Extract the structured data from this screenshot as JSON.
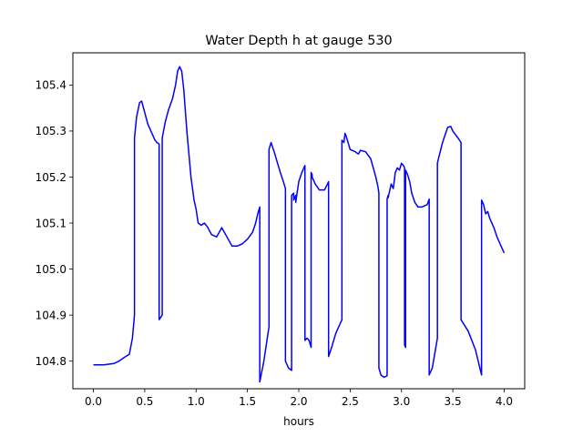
{
  "chart_data": {
    "type": "line",
    "title": "Water Depth h at gauge 530",
    "xlabel": "hours",
    "ylabel": "",
    "xlim": [
      -0.2,
      4.2
    ],
    "ylim": [
      104.74,
      105.47
    ],
    "xticks": [
      0.0,
      0.5,
      1.0,
      1.5,
      2.0,
      2.5,
      3.0,
      3.5,
      4.0
    ],
    "xtick_labels": [
      "0.0",
      "0.5",
      "1.0",
      "1.5",
      "2.0",
      "2.5",
      "3.0",
      "3.5",
      "4.0"
    ],
    "yticks": [
      104.8,
      104.9,
      105.0,
      105.1,
      105.2,
      105.3,
      105.4
    ],
    "ytick_labels": [
      "104.8",
      "104.9",
      "105.0",
      "105.1",
      "105.2",
      "105.3",
      "105.4"
    ],
    "grid": false,
    "line_color": "#0000ff",
    "series": [
      {
        "x": [
          0.0,
          0.1,
          0.2,
          0.25,
          0.3,
          0.35,
          0.38,
          0.4,
          0.4,
          0.42,
          0.45,
          0.47,
          0.5,
          0.53,
          0.56,
          0.6,
          0.62,
          0.64,
          0.64,
          0.67,
          0.67,
          0.7,
          0.73,
          0.77,
          0.8,
          0.82,
          0.84,
          0.86,
          0.88,
          0.91,
          0.95,
          0.98,
          1.0,
          1.02,
          1.05,
          1.08,
          1.11,
          1.15,
          1.2,
          1.25,
          1.3,
          1.35,
          1.4,
          1.45,
          1.5,
          1.55,
          1.58,
          1.6,
          1.62,
          1.62,
          1.66,
          1.7,
          1.71,
          1.71,
          1.73,
          1.76,
          1.78,
          1.82,
          1.85,
          1.87,
          1.87,
          1.9,
          1.93,
          1.93,
          1.95,
          1.95,
          1.97,
          1.97,
          2.0,
          2.03,
          2.06,
          2.06,
          2.08,
          2.1,
          2.12,
          2.12,
          2.13,
          2.13,
          2.16,
          2.2,
          2.25,
          2.28,
          2.29,
          2.29,
          2.32,
          2.36,
          2.4,
          2.42,
          2.42,
          2.44,
          2.45,
          2.46,
          2.5,
          2.55,
          2.58,
          2.6,
          2.65,
          2.7,
          2.75,
          2.76,
          2.77,
          2.78,
          2.78,
          2.8,
          2.83,
          2.86,
          2.86,
          2.87,
          2.87,
          2.9,
          2.92,
          2.94,
          2.96,
          2.98,
          3.0,
          3.02,
          3.03,
          3.03,
          3.04,
          3.04,
          3.06,
          3.08,
          3.1,
          3.13,
          3.16,
          3.2,
          3.25,
          3.27,
          3.27,
          3.3,
          3.35,
          3.35,
          3.36,
          3.4,
          3.43,
          3.45,
          3.48,
          3.5,
          3.55,
          3.58,
          3.58,
          3.65,
          3.72,
          3.78,
          3.78,
          3.8,
          3.82,
          3.84,
          3.86,
          3.9,
          3.93,
          3.95,
          3.97,
          4.0
        ],
        "y": [
          104.792,
          104.792,
          104.795,
          104.8,
          104.808,
          104.815,
          104.85,
          104.9,
          105.285,
          105.33,
          105.362,
          105.365,
          105.34,
          105.315,
          105.3,
          105.28,
          105.275,
          105.272,
          104.89,
          104.9,
          105.285,
          105.32,
          105.345,
          105.37,
          105.4,
          105.43,
          105.44,
          105.43,
          105.39,
          105.3,
          105.2,
          105.15,
          105.13,
          105.1,
          105.095,
          105.1,
          105.092,
          105.075,
          105.07,
          105.09,
          105.07,
          105.05,
          105.05,
          105.055,
          105.065,
          105.08,
          105.1,
          105.12,
          105.135,
          104.755,
          104.8,
          104.86,
          104.875,
          105.26,
          105.275,
          105.255,
          105.24,
          105.21,
          105.19,
          105.175,
          104.8,
          104.785,
          104.78,
          105.16,
          105.165,
          105.15,
          105.16,
          105.145,
          105.19,
          105.21,
          105.225,
          104.845,
          104.85,
          104.845,
          104.83,
          105.21,
          105.205,
          105.2,
          105.185,
          105.172,
          105.172,
          105.185,
          105.19,
          104.81,
          104.83,
          104.86,
          104.88,
          104.89,
          105.28,
          105.275,
          105.295,
          105.29,
          105.26,
          105.255,
          105.25,
          105.258,
          105.255,
          105.24,
          105.2,
          105.19,
          105.18,
          105.165,
          104.785,
          104.77,
          104.765,
          104.768,
          105.152,
          105.16,
          105.155,
          105.185,
          105.175,
          105.21,
          105.22,
          105.215,
          105.23,
          105.225,
          105.22,
          104.835,
          104.83,
          105.215,
          105.205,
          105.19,
          105.165,
          105.145,
          105.135,
          105.135,
          105.14,
          105.152,
          104.77,
          104.785,
          104.85,
          105.23,
          105.24,
          105.275,
          105.295,
          105.308,
          105.31,
          105.3,
          105.285,
          105.275,
          104.89,
          104.865,
          104.825,
          104.77,
          105.15,
          105.14,
          105.12,
          105.125,
          105.11,
          105.09,
          105.07,
          105.06,
          105.05,
          105.035
        ]
      }
    ]
  }
}
